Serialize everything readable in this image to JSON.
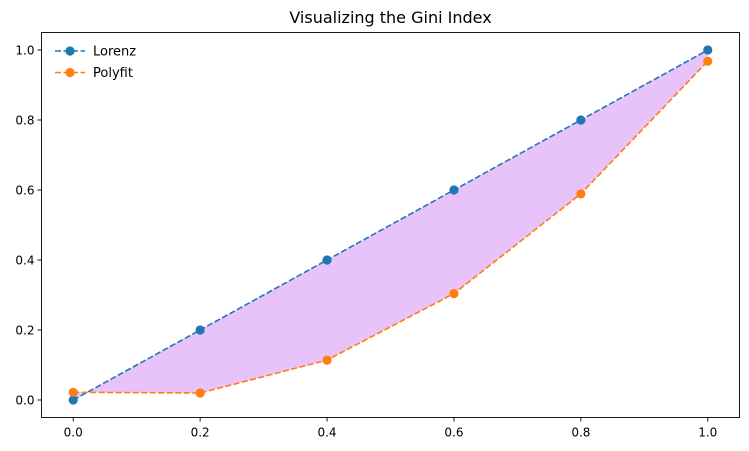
{
  "chart_data": {
    "type": "line",
    "title": "Visualizing the Gini Index",
    "xlabel": "",
    "ylabel": "",
    "x": [
      0.0,
      0.2,
      0.4,
      0.6,
      0.8,
      1.0
    ],
    "series": [
      {
        "name": "Lorenz",
        "values": [
          0.0,
          0.2,
          0.4,
          0.6,
          0.8,
          1.0
        ],
        "color": "#1f77b4",
        "linestyle": "dashed",
        "marker": "circle"
      },
      {
        "name": "Polyfit",
        "values": [
          0.022,
          0.02,
          0.114,
          0.304,
          0.589,
          0.968
        ],
        "color": "#ff7f0e",
        "linestyle": "dashed",
        "marker": "circle"
      }
    ],
    "fill_between": {
      "color": "#e8c3f9"
    },
    "xlim": [
      -0.05,
      1.05
    ],
    "ylim": [
      -0.05,
      1.05
    ],
    "xticks": [
      "0.0",
      "0.2",
      "0.4",
      "0.6",
      "0.8",
      "1.0"
    ],
    "yticks": [
      "0.0",
      "0.2",
      "0.4",
      "0.6",
      "0.8",
      "1.0"
    ],
    "grid": false,
    "legend_position": "top-left"
  }
}
